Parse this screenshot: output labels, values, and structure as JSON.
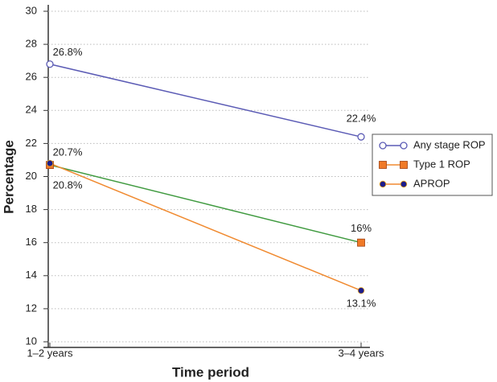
{
  "chart_data": {
    "type": "line",
    "x_label": "Time period",
    "y_label": "Percentage",
    "categories": [
      "1–2 years",
      "3–4 years"
    ],
    "ylim": [
      10,
      30
    ],
    "yticks": [
      10,
      12,
      14,
      16,
      18,
      20,
      22,
      24,
      26,
      28,
      30
    ],
    "grid": true,
    "legend": "right",
    "series": [
      {
        "name": "Any stage ROP",
        "color": "#5b5bb5",
        "marker": "open-circle",
        "marker_color": "#5b5bb5",
        "values": [
          26.8,
          22.4
        ],
        "value_labels": [
          "26.8%",
          "22.4%"
        ]
      },
      {
        "name": "Type 1 ROP",
        "color": "#3f9a3f",
        "marker": "square",
        "marker_color": "#f07a28",
        "values": [
          20.7,
          16
        ],
        "value_labels": [
          "20.7%",
          "16%"
        ]
      },
      {
        "name": "APROP",
        "color": "#f08a30",
        "marker": "dot",
        "marker_color": "#1c1c8c",
        "values": [
          20.8,
          13.1
        ],
        "value_labels": [
          "20.8%",
          "13.1%"
        ]
      }
    ]
  }
}
